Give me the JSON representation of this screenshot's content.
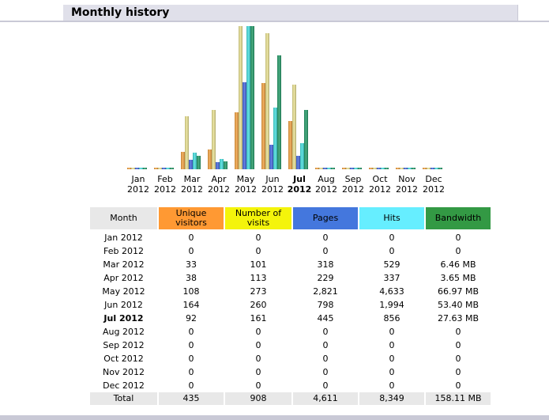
{
  "header": {
    "title": "Monthly history"
  },
  "table": {
    "headers": {
      "month": "Month",
      "unique_visitors": "Unique visitors",
      "visits": "Number of visits",
      "pages": "Pages",
      "hits": "Hits",
      "bandwidth": "Bandwidth"
    },
    "rows": [
      {
        "month": "Jan 2012",
        "unique": "0",
        "visits": "0",
        "pages": "0",
        "hits": "0",
        "bandwidth": "0"
      },
      {
        "month": "Feb 2012",
        "unique": "0",
        "visits": "0",
        "pages": "0",
        "hits": "0",
        "bandwidth": "0"
      },
      {
        "month": "Mar 2012",
        "unique": "33",
        "visits": "101",
        "pages": "318",
        "hits": "529",
        "bandwidth": "6.46 MB"
      },
      {
        "month": "Apr 2012",
        "unique": "38",
        "visits": "113",
        "pages": "229",
        "hits": "337",
        "bandwidth": "3.65 MB"
      },
      {
        "month": "May 2012",
        "unique": "108",
        "visits": "273",
        "pages": "2,821",
        "hits": "4,633",
        "bandwidth": "66.97 MB"
      },
      {
        "month": "Jun 2012",
        "unique": "164",
        "visits": "260",
        "pages": "798",
        "hits": "1,994",
        "bandwidth": "53.40 MB"
      },
      {
        "month": "Jul 2012",
        "unique": "92",
        "visits": "161",
        "pages": "445",
        "hits": "856",
        "bandwidth": "27.63 MB"
      },
      {
        "month": "Aug 2012",
        "unique": "0",
        "visits": "0",
        "pages": "0",
        "hits": "0",
        "bandwidth": "0"
      },
      {
        "month": "Sep 2012",
        "unique": "0",
        "visits": "0",
        "pages": "0",
        "hits": "0",
        "bandwidth": "0"
      },
      {
        "month": "Oct 2012",
        "unique": "0",
        "visits": "0",
        "pages": "0",
        "hits": "0",
        "bandwidth": "0"
      },
      {
        "month": "Nov 2012",
        "unique": "0",
        "visits": "0",
        "pages": "0",
        "hits": "0",
        "bandwidth": "0"
      },
      {
        "month": "Dec 2012",
        "unique": "0",
        "visits": "0",
        "pages": "0",
        "hits": "0",
        "bandwidth": "0"
      }
    ],
    "current_month_index": 6,
    "total": {
      "month": "Total",
      "unique": "435",
      "visits": "908",
      "pages": "4,611",
      "hits": "8,349",
      "bandwidth": "158.11 MB"
    }
  },
  "chart_data": {
    "type": "bar",
    "categories": [
      "Jan 2012",
      "Feb 2012",
      "Mar 2012",
      "Apr 2012",
      "May 2012",
      "Jun 2012",
      "Jul 2012",
      "Aug 2012",
      "Sep 2012",
      "Oct 2012",
      "Nov 2012",
      "Dec 2012"
    ],
    "category_lines": [
      [
        "Jan",
        "2012"
      ],
      [
        "Feb",
        "2012"
      ],
      [
        "Mar",
        "2012"
      ],
      [
        "Apr",
        "2012"
      ],
      [
        "May",
        "2012"
      ],
      [
        "Jun",
        "2012"
      ],
      [
        "Jul",
        "2012"
      ],
      [
        "Aug",
        "2012"
      ],
      [
        "Sep",
        "2012"
      ],
      [
        "Oct",
        "2012"
      ],
      [
        "Nov",
        "2012"
      ],
      [
        "Dec",
        "2012"
      ]
    ],
    "highlight_index": 6,
    "groups": [
      {
        "name": "Unique visitors",
        "color": "#f0a040",
        "values": [
          0,
          0,
          33,
          38,
          108,
          164,
          92,
          0,
          0,
          0,
          0,
          0
        ],
        "max": 273
      },
      {
        "name": "Number of visits",
        "color": "#e8e090",
        "values": [
          0,
          0,
          101,
          113,
          273,
          260,
          161,
          0,
          0,
          0,
          0,
          0
        ],
        "max": 273
      },
      {
        "name": "Pages",
        "color": "#4466dd",
        "values": [
          0,
          0,
          318,
          229,
          2821,
          798,
          445,
          0,
          0,
          0,
          0,
          0
        ],
        "max": 4633
      },
      {
        "name": "Hits",
        "color": "#44dddd",
        "values": [
          0,
          0,
          529,
          337,
          4633,
          1994,
          856,
          0,
          0,
          0,
          0,
          0
        ],
        "max": 4633
      },
      {
        "name": "Bandwidth",
        "color": "#229966",
        "values": [
          0,
          0,
          6.46,
          3.65,
          66.97,
          53.4,
          27.63,
          0,
          0,
          0,
          0,
          0
        ],
        "max": 66.97
      }
    ]
  }
}
